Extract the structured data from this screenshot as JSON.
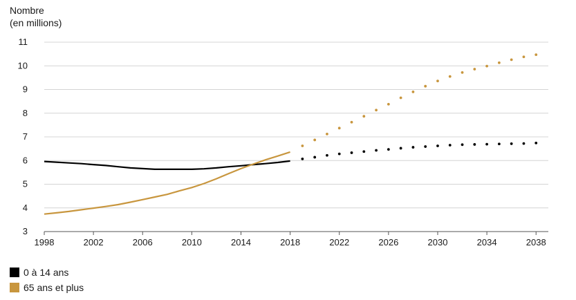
{
  "chart_data": {
    "type": "line",
    "ylabel_line1": "Nombre",
    "ylabel_line2": "(en millions)",
    "ylim": [
      3,
      11
    ],
    "yticks": [
      3,
      4,
      5,
      6,
      7,
      8,
      9,
      10,
      11
    ],
    "xlim": [
      1998,
      2039
    ],
    "xticks": [
      1998,
      2002,
      2006,
      2010,
      2014,
      2018,
      2022,
      2026,
      2030,
      2034,
      2038
    ],
    "grid": "horizontal",
    "legend_position": "bottom-left",
    "series": [
      {
        "name": "0 à 14 ans",
        "color": "#000000",
        "historical": {
          "x": [
            1998,
            1999,
            2000,
            2001,
            2002,
            2003,
            2004,
            2005,
            2006,
            2007,
            2008,
            2009,
            2010,
            2011,
            2012,
            2013,
            2014,
            2015,
            2016,
            2017,
            2018
          ],
          "y": [
            5.96,
            5.93,
            5.9,
            5.87,
            5.83,
            5.79,
            5.74,
            5.69,
            5.66,
            5.63,
            5.63,
            5.63,
            5.63,
            5.65,
            5.69,
            5.74,
            5.78,
            5.83,
            5.87,
            5.92,
            5.98
          ]
        },
        "projection": {
          "x": [
            2019,
            2020,
            2021,
            2022,
            2023,
            2024,
            2025,
            2026,
            2027,
            2028,
            2029,
            2030,
            2031,
            2032,
            2033,
            2034,
            2035,
            2036,
            2037,
            2038
          ],
          "y": [
            6.07,
            6.14,
            6.22,
            6.28,
            6.33,
            6.38,
            6.43,
            6.47,
            6.52,
            6.56,
            6.59,
            6.62,
            6.65,
            6.67,
            6.68,
            6.69,
            6.7,
            6.71,
            6.72,
            6.74
          ]
        }
      },
      {
        "name": "65 ans et plus",
        "color": "#c8963e",
        "historical": {
          "x": [
            1998,
            1999,
            2000,
            2001,
            2002,
            2003,
            2004,
            2005,
            2006,
            2007,
            2008,
            2009,
            2010,
            2011,
            2012,
            2013,
            2014,
            2015,
            2016,
            2017,
            2018
          ],
          "y": [
            3.74,
            3.79,
            3.85,
            3.92,
            3.99,
            4.06,
            4.14,
            4.24,
            4.35,
            4.46,
            4.57,
            4.72,
            4.86,
            5.03,
            5.23,
            5.45,
            5.66,
            5.85,
            6.03,
            6.19,
            6.36
          ]
        },
        "projection": {
          "x": [
            2019,
            2020,
            2021,
            2022,
            2023,
            2024,
            2025,
            2026,
            2027,
            2028,
            2029,
            2030,
            2031,
            2032,
            2033,
            2034,
            2035,
            2036,
            2037,
            2038
          ],
          "y": [
            6.62,
            6.87,
            7.12,
            7.37,
            7.62,
            7.87,
            8.13,
            8.38,
            8.65,
            8.9,
            9.14,
            9.36,
            9.55,
            9.72,
            9.86,
            9.99,
            10.13,
            10.26,
            10.38,
            10.47
          ]
        }
      }
    ]
  }
}
